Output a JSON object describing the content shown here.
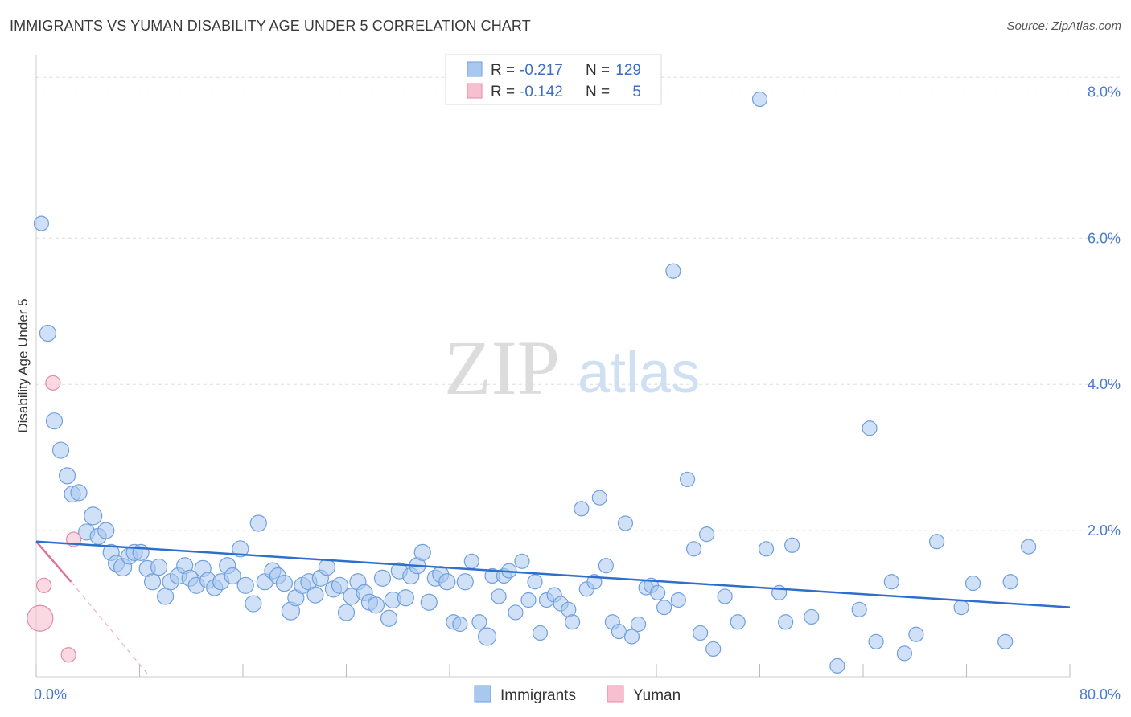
{
  "title": "IMMIGRANTS VS YUMAN DISABILITY AGE UNDER 5 CORRELATION CHART",
  "source": "Source: ZipAtlas.com",
  "watermark": {
    "zip": "ZIP",
    "atlas": "atlas"
  },
  "legend_top": {
    "rows": [
      {
        "r_label": "R =",
        "r_value": "-0.217",
        "n_label": "N =",
        "n_value": "129",
        "color": "#a9c8f0"
      },
      {
        "r_label": "R =",
        "r_value": "-0.142",
        "n_label": "N =",
        "n_value": "5",
        "color": "#f7bfd0"
      }
    ]
  },
  "legend_bottom": [
    {
      "label": "Immigrants",
      "color": "#a9c8f0"
    },
    {
      "label": "Yuman",
      "color": "#f7bfd0"
    }
  ],
  "colors": {
    "immigrants_fill": "#a9c8f0",
    "immigrants_stroke": "#6f9fdc",
    "immigrants_line": "#2f6fcc",
    "yuman_fill": "#f7bfd0",
    "yuman_stroke": "#e58aa8",
    "yuman_line": "#e0709a",
    "tick_label": "#4a7ccc",
    "grid": "#dddddd"
  },
  "chart_data": {
    "type": "scatter",
    "title": "IMMIGRANTS VS YUMAN DISABILITY AGE UNDER 5 CORRELATION CHART",
    "xlabel": "",
    "ylabel": "Disability Age Under 5",
    "xlim": [
      0,
      80
    ],
    "ylim": [
      0,
      8.4
    ],
    "x_tick_labels": [
      {
        "value": 0,
        "label": "0.0%"
      },
      {
        "value": 80,
        "label": "80.0%"
      }
    ],
    "y_tick_labels": [
      {
        "value": 2,
        "label": "2.0%"
      },
      {
        "value": 4,
        "label": "4.0%"
      },
      {
        "value": 6,
        "label": "6.0%"
      },
      {
        "value": 8,
        "label": "8.0%"
      }
    ],
    "x_minor_ticks": [
      0,
      8,
      16,
      24,
      32,
      40,
      48,
      56,
      64,
      72,
      80
    ],
    "grid": true,
    "series": [
      {
        "name": "Immigrants",
        "r": -0.217,
        "n": 129,
        "trend": {
          "x0": 0,
          "y0": 1.85,
          "x1": 80,
          "y1": 0.95
        },
        "points": [
          [
            0.4,
            6.2,
            9
          ],
          [
            0.9,
            4.7,
            10
          ],
          [
            1.4,
            3.5,
            10
          ],
          [
            1.9,
            3.1,
            10
          ],
          [
            2.4,
            2.75,
            10
          ],
          [
            2.8,
            2.5,
            10
          ],
          [
            3.3,
            2.52,
            10
          ],
          [
            4.4,
            2.2,
            11
          ],
          [
            3.9,
            1.98,
            10
          ],
          [
            4.8,
            1.92,
            10
          ],
          [
            5.4,
            2.0,
            10
          ],
          [
            5.8,
            1.7,
            10
          ],
          [
            6.2,
            1.55,
            10
          ],
          [
            6.7,
            1.5,
            11
          ],
          [
            7.2,
            1.65,
            10
          ],
          [
            7.6,
            1.7,
            10
          ],
          [
            8.1,
            1.7,
            10
          ],
          [
            8.6,
            1.48,
            10
          ],
          [
            9.0,
            1.3,
            10
          ],
          [
            9.5,
            1.5,
            10
          ],
          [
            10.0,
            1.1,
            10
          ],
          [
            10.4,
            1.3,
            10
          ],
          [
            11.0,
            1.38,
            10
          ],
          [
            11.5,
            1.52,
            10
          ],
          [
            11.9,
            1.35,
            10
          ],
          [
            12.4,
            1.25,
            10
          ],
          [
            12.9,
            1.48,
            10
          ],
          [
            13.3,
            1.32,
            10
          ],
          [
            13.8,
            1.22,
            10
          ],
          [
            14.3,
            1.3,
            10
          ],
          [
            14.8,
            1.52,
            10
          ],
          [
            15.2,
            1.38,
            10
          ],
          [
            15.8,
            1.75,
            10
          ],
          [
            16.2,
            1.25,
            10
          ],
          [
            16.8,
            1.0,
            10
          ],
          [
            17.2,
            2.1,
            10
          ],
          [
            17.7,
            1.3,
            10
          ],
          [
            18.3,
            1.45,
            10
          ],
          [
            18.7,
            1.38,
            10
          ],
          [
            19.2,
            1.28,
            10
          ],
          [
            19.7,
            0.9,
            11
          ],
          [
            20.1,
            1.08,
            10
          ],
          [
            20.6,
            1.25,
            10
          ],
          [
            21.1,
            1.3,
            10
          ],
          [
            21.6,
            1.12,
            10
          ],
          [
            22.0,
            1.35,
            10
          ],
          [
            22.5,
            1.5,
            10
          ],
          [
            23.0,
            1.2,
            10
          ],
          [
            23.5,
            1.25,
            10
          ],
          [
            24.0,
            0.88,
            10
          ],
          [
            24.4,
            1.1,
            10
          ],
          [
            24.9,
            1.3,
            10
          ],
          [
            25.4,
            1.15,
            10
          ],
          [
            25.8,
            1.02,
            10
          ],
          [
            26.3,
            0.98,
            10
          ],
          [
            26.8,
            1.35,
            10
          ],
          [
            27.3,
            0.8,
            10
          ],
          [
            27.6,
            1.05,
            10
          ],
          [
            28.1,
            1.45,
            10
          ],
          [
            28.6,
            1.08,
            10
          ],
          [
            29.0,
            1.38,
            10
          ],
          [
            29.5,
            1.52,
            10
          ],
          [
            29.9,
            1.7,
            10
          ],
          [
            30.4,
            1.02,
            10
          ],
          [
            30.9,
            1.35,
            10
          ],
          [
            31.3,
            1.4,
            10
          ],
          [
            31.8,
            1.3,
            10
          ],
          [
            32.3,
            0.75,
            9
          ],
          [
            32.8,
            0.72,
            9
          ],
          [
            33.2,
            1.3,
            10
          ],
          [
            33.7,
            1.58,
            9
          ],
          [
            34.3,
            0.75,
            9
          ],
          [
            34.9,
            0.55,
            11
          ],
          [
            35.3,
            1.38,
            9
          ],
          [
            35.8,
            1.1,
            9
          ],
          [
            36.2,
            1.38,
            9
          ],
          [
            36.6,
            1.45,
            9
          ],
          [
            37.1,
            0.88,
            9
          ],
          [
            37.6,
            1.58,
            9
          ],
          [
            38.1,
            1.05,
            9
          ],
          [
            38.6,
            1.3,
            9
          ],
          [
            39.0,
            0.6,
            9
          ],
          [
            39.5,
            1.05,
            9
          ],
          [
            40.1,
            1.12,
            9
          ],
          [
            40.6,
            1.0,
            9
          ],
          [
            41.2,
            0.92,
            9
          ],
          [
            41.5,
            0.75,
            9
          ],
          [
            42.2,
            2.3,
            9
          ],
          [
            42.6,
            1.2,
            9
          ],
          [
            43.2,
            1.3,
            9
          ],
          [
            43.6,
            2.45,
            9
          ],
          [
            44.1,
            1.52,
            9
          ],
          [
            44.6,
            0.75,
            9
          ],
          [
            45.1,
            0.62,
            9
          ],
          [
            45.6,
            2.1,
            9
          ],
          [
            46.1,
            0.55,
            9
          ],
          [
            46.6,
            0.72,
            9
          ],
          [
            47.2,
            1.22,
            9
          ],
          [
            47.6,
            1.25,
            9
          ],
          [
            48.1,
            1.15,
            9
          ],
          [
            48.6,
            0.95,
            9
          ],
          [
            49.3,
            5.55,
            9
          ],
          [
            49.7,
            1.05,
            9
          ],
          [
            50.4,
            2.7,
            9
          ],
          [
            50.9,
            1.75,
            9
          ],
          [
            51.4,
            0.6,
            9
          ],
          [
            51.9,
            1.95,
            9
          ],
          [
            52.4,
            0.38,
            9
          ],
          [
            53.3,
            1.1,
            9
          ],
          [
            54.3,
            0.75,
            9
          ],
          [
            56.0,
            7.9,
            9
          ],
          [
            56.5,
            1.75,
            9
          ],
          [
            57.5,
            1.15,
            9
          ],
          [
            58.0,
            0.75,
            9
          ],
          [
            58.5,
            1.8,
            9
          ],
          [
            60.0,
            0.82,
            9
          ],
          [
            62.0,
            0.15,
            9
          ],
          [
            63.7,
            0.92,
            9
          ],
          [
            64.5,
            3.4,
            9
          ],
          [
            65.0,
            0.48,
            9
          ],
          [
            66.2,
            1.3,
            9
          ],
          [
            67.2,
            0.32,
            9
          ],
          [
            68.1,
            0.58,
            9
          ],
          [
            69.7,
            1.85,
            9
          ],
          [
            71.6,
            0.95,
            9
          ],
          [
            72.5,
            1.28,
            9
          ],
          [
            75.0,
            0.48,
            9
          ],
          [
            75.4,
            1.3,
            9
          ],
          [
            76.8,
            1.78,
            9
          ]
        ]
      },
      {
        "name": "Yuman",
        "r": -0.142,
        "n": 5,
        "trend_solid": {
          "x0": 0,
          "y0": 1.85,
          "x1": 2.7,
          "y1": 1.3
        },
        "trend_dashed": {
          "x0": 2.7,
          "y0": 1.3,
          "x1": 8.8,
          "y1": 0.0
        },
        "points": [
          [
            1.3,
            4.02,
            9
          ],
          [
            2.9,
            1.88,
            9
          ],
          [
            0.6,
            1.25,
            9
          ],
          [
            0.3,
            0.8,
            16
          ],
          [
            2.5,
            0.3,
            9
          ]
        ]
      }
    ]
  }
}
